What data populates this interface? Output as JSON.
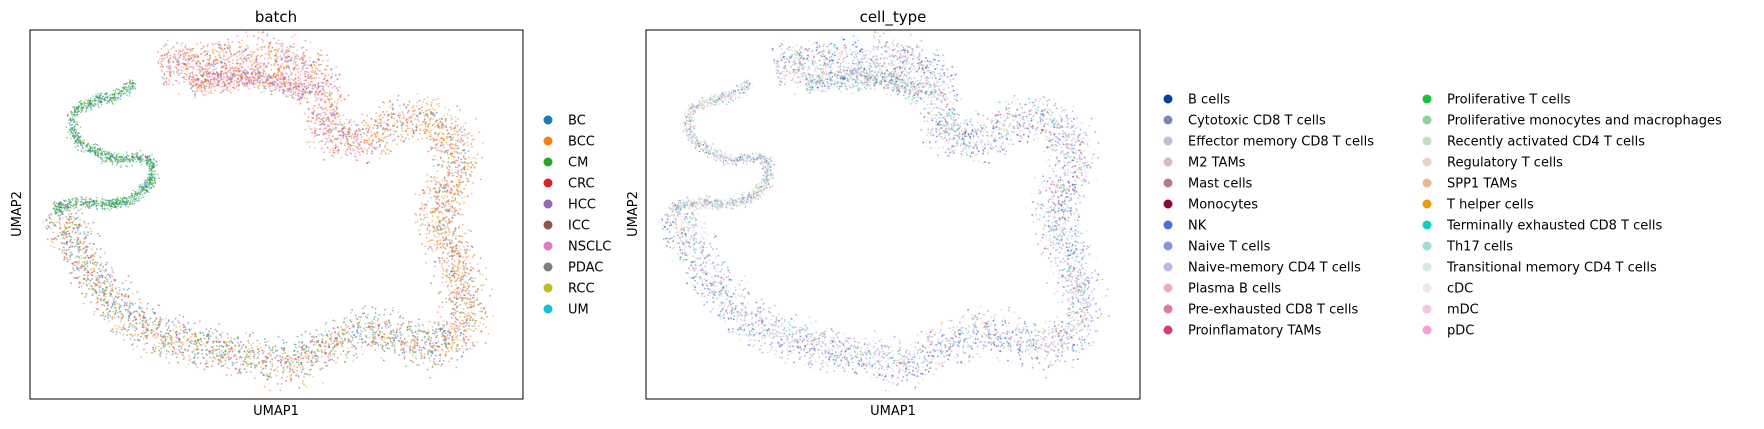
{
  "chart_data": [
    {
      "type": "scatter",
      "title": "batch",
      "xlabel": "UMAP1",
      "ylabel": "UMAP2",
      "grid": false,
      "ticks": false,
      "legend_position": "right",
      "series": [
        {
          "name": "BC",
          "color": "#1f77b4"
        },
        {
          "name": "BCC",
          "color": "#ff7f0e"
        },
        {
          "name": "CM",
          "color": "#2ca02c"
        },
        {
          "name": "CRC",
          "color": "#d62728"
        },
        {
          "name": "HCC",
          "color": "#9467bd"
        },
        {
          "name": "ICC",
          "color": "#8c564b"
        },
        {
          "name": "NSCLC",
          "color": "#e377c2"
        },
        {
          "name": "PDAC",
          "color": "#7f7f7f"
        },
        {
          "name": "RCC",
          "color": "#bcbd22"
        },
        {
          "name": "UM",
          "color": "#17becf"
        }
      ]
    },
    {
      "type": "scatter",
      "title": "cell_type",
      "xlabel": "UMAP1",
      "ylabel": "UMAP2",
      "grid": false,
      "ticks": false,
      "legend_position": "right",
      "series": [
        {
          "name": "B cells",
          "color": "#023fa5"
        },
        {
          "name": "Cytotoxic CD8 T cells",
          "color": "#7d87b9"
        },
        {
          "name": "Effector memory CD8 T cells",
          "color": "#bec1d4"
        },
        {
          "name": "M2 TAMs",
          "color": "#d6bcc0"
        },
        {
          "name": "Mast cells",
          "color": "#bb7784"
        },
        {
          "name": "Monocytes",
          "color": "#8e063b"
        },
        {
          "name": "NK",
          "color": "#4a6fe3"
        },
        {
          "name": "Naive T cells",
          "color": "#8595e1"
        },
        {
          "name": "Naive-memory CD4 T cells",
          "color": "#b5bbe3"
        },
        {
          "name": "Plasma B cells",
          "color": "#e6afb9"
        },
        {
          "name": "Pre-exhausted CD8 T cells",
          "color": "#e07b91"
        },
        {
          "name": "Proinflamatory TAMs",
          "color": "#d33f6a"
        },
        {
          "name": "Proliferative T cells",
          "color": "#11c638"
        },
        {
          "name": "Proliferative monocytes and macrophages",
          "color": "#8dd593"
        },
        {
          "name": "Recently activated CD4 T cells",
          "color": "#c6dec7"
        },
        {
          "name": "Regulatory T cells",
          "color": "#ead3c6"
        },
        {
          "name": "SPP1 TAMs",
          "color": "#f0b98d"
        },
        {
          "name": "T helper cells",
          "color": "#ef9708"
        },
        {
          "name": "Terminally exhausted CD8 T cells",
          "color": "#0fcfc0"
        },
        {
          "name": "Th17 cells",
          "color": "#9cded6"
        },
        {
          "name": "Transitional memory CD4 T cells",
          "color": "#d5eae7"
        },
        {
          "name": "cDC",
          "color": "#f3e1eb"
        },
        {
          "name": "mDC",
          "color": "#f6c4e1"
        },
        {
          "name": "pDC",
          "color": "#f79cd4"
        }
      ]
    }
  ]
}
